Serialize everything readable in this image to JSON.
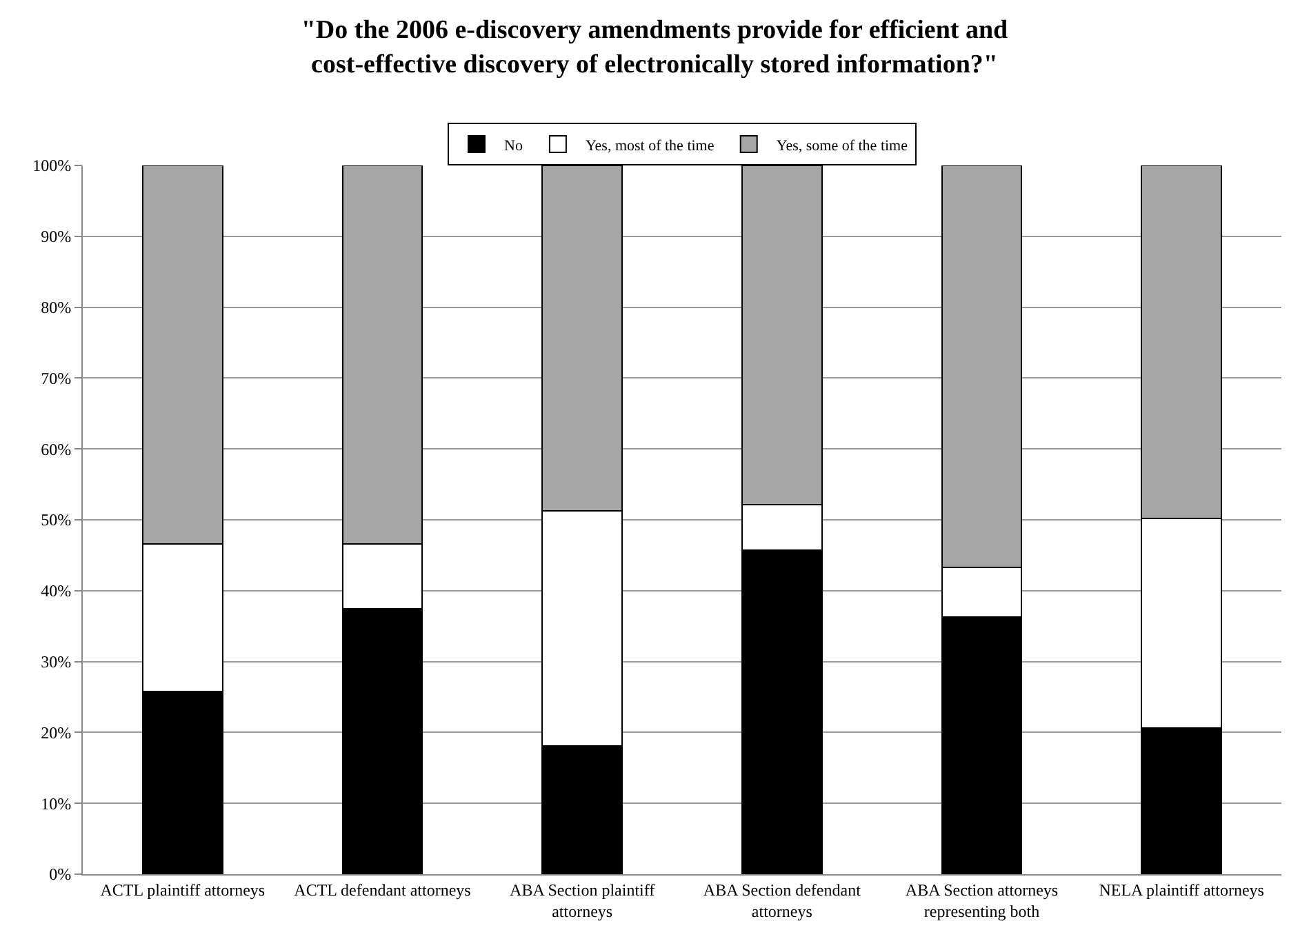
{
  "chart_data": {
    "type": "bar",
    "stacked": true,
    "title": "\"Do the 2006 e-discovery amendments provide for efficient and cost-effective discovery of electronically stored information?\"",
    "categories": [
      "ACTL plaintiff attorneys",
      "ACTL defendant attorneys",
      "ABA Section plaintiff attorneys",
      "ABA Section defendant attorneys",
      "ABA Section attorneys representing both",
      "NELA plaintiff attorneys"
    ],
    "series": [
      {
        "name": "No",
        "color": "#000000",
        "values": [
          25.8,
          37.5,
          18.1,
          45.7,
          36.3,
          20.6
        ]
      },
      {
        "name": "Yes, most of the time",
        "color": "#ffffff",
        "values": [
          20.8,
          9.1,
          33.2,
          6.4,
          7.0,
          29.6
        ]
      },
      {
        "name": "Yes, some of the time",
        "color": "#a6a6a6",
        "values": [
          53.4,
          53.4,
          48.7,
          47.9,
          56.7,
          49.8
        ]
      }
    ],
    "ylim": [
      0,
      100
    ],
    "yticks": [
      {
        "value": 0,
        "label": "0%"
      },
      {
        "value": 10,
        "label": "10%"
      },
      {
        "value": 20,
        "label": "20%"
      },
      {
        "value": 30,
        "label": "30%"
      },
      {
        "value": 40,
        "label": "40%"
      },
      {
        "value": 50,
        "label": "50%"
      },
      {
        "value": 60,
        "label": "60%"
      },
      {
        "value": 70,
        "label": "70%"
      },
      {
        "value": 80,
        "label": "80%"
      },
      {
        "value": 90,
        "label": "90%"
      },
      {
        "value": 100,
        "label": "100%"
      }
    ],
    "grid": "y",
    "legend": "top"
  }
}
